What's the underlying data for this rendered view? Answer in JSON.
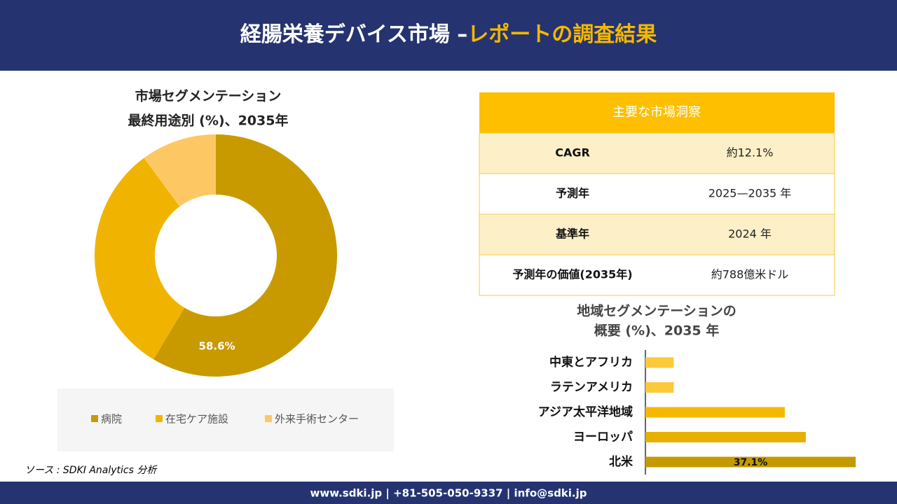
{
  "header": {
    "title": "経腸栄養デバイス市場 –",
    "title_highlight": "レポートの調査結果"
  },
  "chart_data": [
    {
      "type": "donut",
      "title": "市場セグメンテーション",
      "subtitle": "最終用途別 (%)、2035年",
      "categories": [
        "病院",
        "在宅ケア施設",
        "外来手術センター"
      ],
      "values": [
        58.6,
        31.3,
        10.1
      ],
      "value_labels": [
        "58.6%",
        null,
        null
      ],
      "colors": [
        "#c89a00",
        "#f0b400",
        "#fdc864"
      ],
      "legend": "bottom"
    },
    {
      "type": "hbar",
      "title": "地域セグメンテーションの",
      "subtitle": "概要 (%)、2035 年",
      "categories": [
        "中東とアフリカ",
        "ラテンアメリカ",
        "アジア太平洋地域",
        "ヨーロッパ",
        "北米"
      ],
      "values": [
        5.0,
        5.0,
        24.6,
        28.3,
        37.1
      ],
      "value_labels": [
        null,
        null,
        null,
        null,
        "37.1%"
      ],
      "colors": [
        "#fcc93a",
        "#fcc93a",
        "#f5b800",
        "#e6b000",
        "#c49a00"
      ]
    }
  ],
  "table": {
    "title": "主要な市場洞察",
    "rows": [
      [
        "CAGR",
        "約12.1%"
      ],
      [
        "予測年",
        "2025—2035 年"
      ],
      [
        "基準年",
        "2024 年"
      ],
      [
        "予測年の価値(2035年)",
        "約788億米ドル"
      ]
    ]
  },
  "source": "ソース : SDKI Analytics 分析",
  "footer": "www.sdki.jp | +81-505-050-9337 | info@sdki.jp"
}
